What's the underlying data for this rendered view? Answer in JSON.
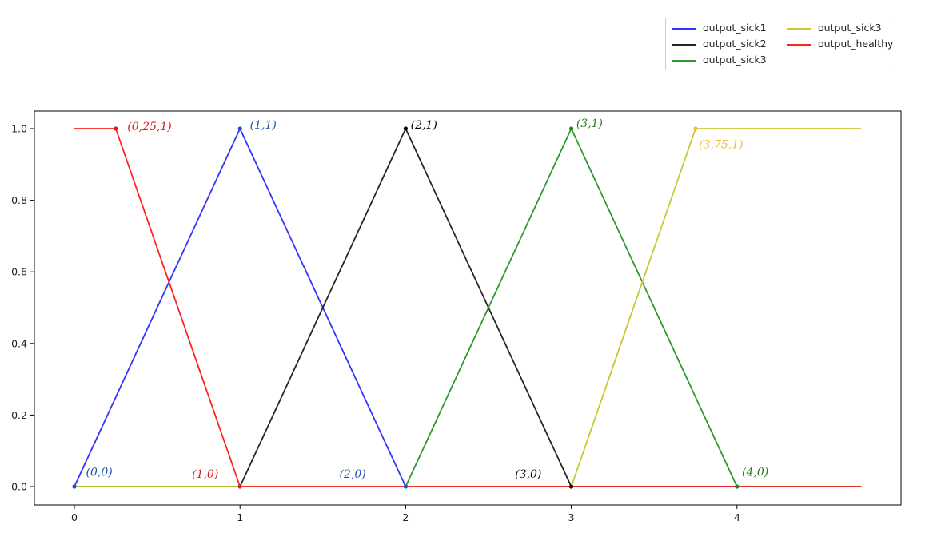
{
  "chart_data": {
    "type": "line",
    "xlim": [
      -0.24,
      5.0
    ],
    "ylim": [
      -0.05,
      1.05
    ],
    "x_ticks": [
      "0",
      "1",
      "2",
      "3",
      "4"
    ],
    "y_ticks": [
      "0.0",
      "0.2",
      "0.4",
      "0.6",
      "0.8",
      "1.0"
    ],
    "grid": false,
    "legend_placement": "top-right, outside axes",
    "series": [
      {
        "name": "output_sick1",
        "color": "#3333ff",
        "x": [
          0,
          1,
          2,
          4.75
        ],
        "y": [
          0,
          1,
          0,
          0
        ],
        "legend_col": 0,
        "legend_row": 0
      },
      {
        "name": "output_sick2",
        "color": "#262626",
        "x": [
          0,
          1,
          2,
          3,
          4.75
        ],
        "y": [
          0,
          0,
          1,
          0,
          0
        ],
        "legend_col": 0,
        "legend_row": 1
      },
      {
        "name": "output_sick3",
        "color": "#2e9a2e",
        "x": [
          0,
          2,
          3,
          4,
          4.75
        ],
        "y": [
          0,
          0,
          1,
          0,
          0
        ],
        "legend_col": 0,
        "legend_row": 2
      },
      {
        "name": "output_sick3",
        "color": "#c8c832",
        "x": [
          0,
          3,
          3.75,
          4.75
        ],
        "y": [
          0,
          0,
          1,
          1
        ],
        "legend_col": 1,
        "legend_row": 0
      },
      {
        "name": "output_healthy",
        "color": "#ff2222",
        "x": [
          0,
          0.25,
          1,
          4.75
        ],
        "y": [
          1,
          1,
          0,
          0
        ],
        "legend_col": 1,
        "legend_row": 1
      }
    ],
    "markers": [
      {
        "x": 0,
        "y": 0,
        "color": "#1f4fb0"
      },
      {
        "x": 0.25,
        "y": 1,
        "color": "#d32020"
      },
      {
        "x": 1,
        "y": 1,
        "color": "#1f4fb0"
      },
      {
        "x": 1,
        "y": 0,
        "color": "#d32020"
      },
      {
        "x": 2,
        "y": 1,
        "color": "#000000"
      },
      {
        "x": 2,
        "y": 0,
        "color": "#1f4fb0"
      },
      {
        "x": 3,
        "y": 1,
        "color": "#2e7a1e"
      },
      {
        "x": 3,
        "y": 0,
        "color": "#000000"
      },
      {
        "x": 3.75,
        "y": 1,
        "color": "#f0b840"
      },
      {
        "x": 4,
        "y": 0,
        "color": "#2e7a1e"
      }
    ],
    "annotations": [
      {
        "text": "(0,0)",
        "x": 0.07,
        "y": 0.03,
        "color": "#1f4fb0"
      },
      {
        "text": "(0,25,1)",
        "x": 0.32,
        "y": 0.995,
        "color": "#d32020"
      },
      {
        "text": "(1,1)",
        "x": 1.06,
        "y": 1.0,
        "color": "#1f4fb0"
      },
      {
        "text": "(1,0)",
        "x": 0.71,
        "y": 0.025,
        "color": "#d32020"
      },
      {
        "text": "(2,1)",
        "x": 2.03,
        "y": 1.0,
        "color": "#000000"
      },
      {
        "text": "(2,0)",
        "x": 1.6,
        "y": 0.025,
        "color": "#1f4fb0"
      },
      {
        "text": "(3,1)",
        "x": 3.03,
        "y": 1.005,
        "color": "#2e7a1e"
      },
      {
        "text": "(3,0)",
        "x": 2.66,
        "y": 0.025,
        "color": "#000000"
      },
      {
        "text": "(3,75,1)",
        "x": 3.77,
        "y": 0.945,
        "color": "#f0b840"
      },
      {
        "text": "(4,0)",
        "x": 4.03,
        "y": 0.03,
        "color": "#2e7a1e"
      }
    ]
  }
}
